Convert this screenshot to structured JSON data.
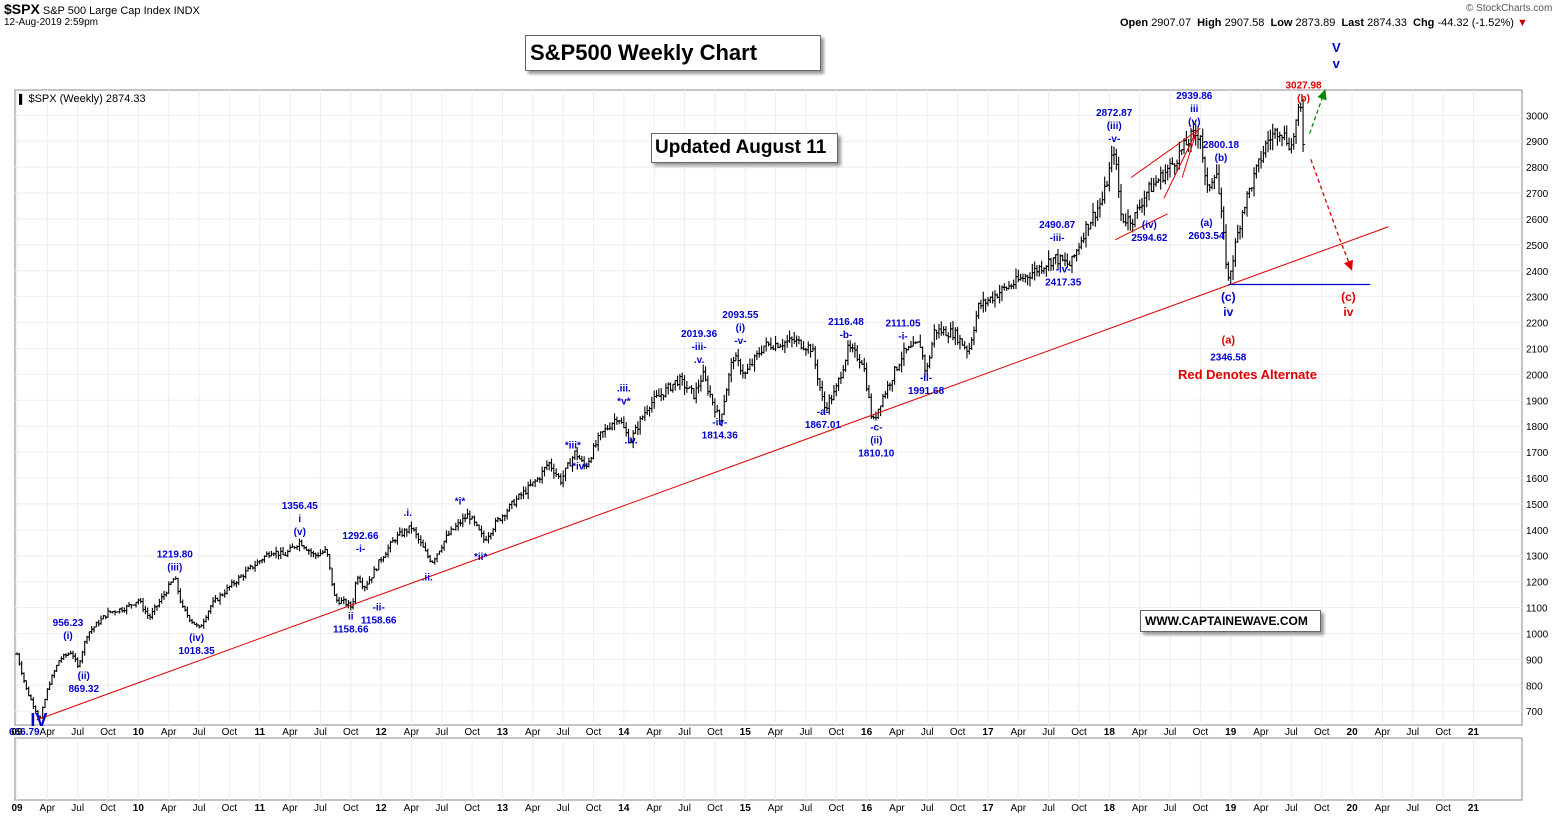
{
  "header": {
    "symbol": "$SPX",
    "description": "S&P 500 Large Cap Index",
    "exchange": "INDX",
    "timestamp": "12-Aug-2019 2:59pm",
    "open_label": "Open",
    "open": "2907.07",
    "high_label": "High",
    "high": "2907.58",
    "low_label": "Low",
    "low": "2873.89",
    "last_label": "Last",
    "last": "2874.33",
    "chg_label": "Chg",
    "chg": "-44.32 (-1.52%)",
    "brand": "© StockCharts.com"
  },
  "legend": {
    "text": "$SPX (Weekly) 2874.33"
  },
  "title_box": "S&P500 Weekly Chart",
  "updated_box": "Updated August 11",
  "website_box": "WWW.CAPTAINEWAVE.COM",
  "alternate_note": "Red Denotes Alternate",
  "colors": {
    "bars": "#000000",
    "wave_labels": "#0000cc",
    "alternate": "#dd0000",
    "trendline": "#dd0000",
    "support_line": "#0000cc",
    "bullish_arrow": "#008800"
  },
  "chart_data": {
    "type": "ohlc",
    "timeframe": "weekly",
    "ylim": [
      666,
      3090
    ],
    "yticks": [
      700,
      800,
      900,
      1000,
      1100,
      1200,
      1300,
      1400,
      1500,
      1600,
      1700,
      1800,
      1900,
      2000,
      2100,
      2200,
      2300,
      2400,
      2500,
      2600,
      2700,
      2800,
      2900,
      3000
    ],
    "x_range": [
      2009.0,
      2021.4
    ],
    "xticks": [
      {
        "t": 2009.0,
        "label": "09",
        "bold": true
      },
      {
        "t": 2009.25,
        "label": "Apr"
      },
      {
        "t": 2009.5,
        "label": "Jul"
      },
      {
        "t": 2009.75,
        "label": "Oct"
      },
      {
        "t": 2010.0,
        "label": "10",
        "bold": true
      },
      {
        "t": 2010.25,
        "label": "Apr"
      },
      {
        "t": 2010.5,
        "label": "Jul"
      },
      {
        "t": 2010.75,
        "label": "Oct"
      },
      {
        "t": 2011.0,
        "label": "11",
        "bold": true
      },
      {
        "t": 2011.25,
        "label": "Apr"
      },
      {
        "t": 2011.5,
        "label": "Jul"
      },
      {
        "t": 2011.75,
        "label": "Oct"
      },
      {
        "t": 2012.0,
        "label": "12",
        "bold": true
      },
      {
        "t": 2012.25,
        "label": "Apr"
      },
      {
        "t": 2012.5,
        "label": "Jul"
      },
      {
        "t": 2012.75,
        "label": "Oct"
      },
      {
        "t": 2013.0,
        "label": "13",
        "bold": true
      },
      {
        "t": 2013.25,
        "label": "Apr"
      },
      {
        "t": 2013.5,
        "label": "Jul"
      },
      {
        "t": 2013.75,
        "label": "Oct"
      },
      {
        "t": 2014.0,
        "label": "14",
        "bold": true
      },
      {
        "t": 2014.25,
        "label": "Apr"
      },
      {
        "t": 2014.5,
        "label": "Jul"
      },
      {
        "t": 2014.75,
        "label": "Oct"
      },
      {
        "t": 2015.0,
        "label": "15",
        "bold": true
      },
      {
        "t": 2015.25,
        "label": "Apr"
      },
      {
        "t": 2015.5,
        "label": "Jul"
      },
      {
        "t": 2015.75,
        "label": "Oct"
      },
      {
        "t": 2016.0,
        "label": "16",
        "bold": true
      },
      {
        "t": 2016.25,
        "label": "Apr"
      },
      {
        "t": 2016.5,
        "label": "Jul"
      },
      {
        "t": 2016.75,
        "label": "Oct"
      },
      {
        "t": 2017.0,
        "label": "17",
        "bold": true
      },
      {
        "t": 2017.25,
        "label": "Apr"
      },
      {
        "t": 2017.5,
        "label": "Jul"
      },
      {
        "t": 2017.75,
        "label": "Oct"
      },
      {
        "t": 2018.0,
        "label": "18",
        "bold": true
      },
      {
        "t": 2018.25,
        "label": "Apr"
      },
      {
        "t": 2018.5,
        "label": "Jul"
      },
      {
        "t": 2018.75,
        "label": "Oct"
      },
      {
        "t": 2019.0,
        "label": "19",
        "bold": true
      },
      {
        "t": 2019.25,
        "label": "Apr"
      },
      {
        "t": 2019.5,
        "label": "Jul"
      },
      {
        "t": 2019.75,
        "label": "Oct"
      },
      {
        "t": 2020.0,
        "label": "20",
        "bold": true
      },
      {
        "t": 2020.25,
        "label": "Apr"
      },
      {
        "t": 2020.5,
        "label": "Jul"
      },
      {
        "t": 2020.75,
        "label": "Oct"
      },
      {
        "t": 2021.0,
        "label": "21",
        "bold": true
      }
    ],
    "price_path": [
      [
        2009.0,
        920
      ],
      [
        2009.08,
        780
      ],
      [
        2009.19,
        667
      ],
      [
        2009.26,
        800
      ],
      [
        2009.35,
        900
      ],
      [
        2009.45,
        930
      ],
      [
        2009.5,
        870
      ],
      [
        2009.58,
        1000
      ],
      [
        2009.75,
        1080
      ],
      [
        2009.9,
        1100
      ],
      [
        2010.0,
        1130
      ],
      [
        2010.09,
        1060
      ],
      [
        2010.3,
        1217
      ],
      [
        2010.36,
        1100
      ],
      [
        2010.42,
        1060
      ],
      [
        2010.5,
        1018
      ],
      [
        2010.6,
        1110
      ],
      [
        2010.75,
        1180
      ],
      [
        2010.92,
        1250
      ],
      [
        2011.1,
        1320
      ],
      [
        2011.2,
        1300
      ],
      [
        2011.33,
        1356
      ],
      [
        2011.45,
        1300
      ],
      [
        2011.55,
        1320
      ],
      [
        2011.62,
        1130
      ],
      [
        2011.7,
        1120
      ],
      [
        2011.76,
        1100
      ],
      [
        2011.8,
        1230
      ],
      [
        2011.86,
        1180
      ],
      [
        2011.92,
        1220
      ],
      [
        2012.0,
        1290
      ],
      [
        2012.12,
        1370
      ],
      [
        2012.25,
        1410
      ],
      [
        2012.38,
        1300
      ],
      [
        2012.42,
        1278
      ],
      [
        2012.55,
        1380
      ],
      [
        2012.72,
        1460
      ],
      [
        2012.85,
        1360
      ],
      [
        2012.95,
        1430
      ],
      [
        2013.1,
        1510
      ],
      [
        2013.3,
        1600
      ],
      [
        2013.38,
        1660
      ],
      [
        2013.48,
        1590
      ],
      [
        2013.6,
        1700
      ],
      [
        2013.68,
        1640
      ],
      [
        2013.8,
        1760
      ],
      [
        2013.95,
        1840
      ],
      [
        2014.05,
        1740
      ],
      [
        2014.2,
        1880
      ],
      [
        2014.45,
        1980
      ],
      [
        2014.58,
        1920
      ],
      [
        2014.65,
        2000
      ],
      [
        2014.79,
        1820
      ],
      [
        2014.9,
        2070
      ],
      [
        2015.0,
        2000
      ],
      [
        2015.15,
        2110
      ],
      [
        2015.4,
        2130
      ],
      [
        2015.55,
        2100
      ],
      [
        2015.65,
        1870
      ],
      [
        2015.74,
        1930
      ],
      [
        2015.85,
        2100
      ],
      [
        2015.97,
        2050
      ],
      [
        2016.05,
        1810
      ],
      [
        2016.12,
        1900
      ],
      [
        2016.3,
        2080
      ],
      [
        2016.44,
        2120
      ],
      [
        2016.49,
        2000
      ],
      [
        2016.56,
        2170
      ],
      [
        2016.72,
        2160
      ],
      [
        2016.84,
        2090
      ],
      [
        2016.92,
        2260
      ],
      [
        2017.1,
        2320
      ],
      [
        2017.35,
        2390
      ],
      [
        2017.55,
        2450
      ],
      [
        2017.68,
        2420
      ],
      [
        2017.8,
        2560
      ],
      [
        2017.95,
        2680
      ],
      [
        2018.04,
        2872
      ],
      [
        2018.1,
        2600
      ],
      [
        2018.2,
        2600
      ],
      [
        2018.3,
        2700
      ],
      [
        2018.5,
        2800
      ],
      [
        2018.68,
        2920
      ],
      [
        2018.75,
        2930
      ],
      [
        2018.8,
        2700
      ],
      [
        2018.88,
        2800
      ],
      [
        2018.98,
        2360
      ],
      [
        2019.1,
        2640
      ],
      [
        2019.3,
        2900
      ],
      [
        2019.4,
        2950
      ],
      [
        2019.5,
        2880
      ],
      [
        2019.55,
        3000
      ],
      [
        2019.58,
        3020
      ],
      [
        2019.6,
        2870
      ]
    ],
    "trendline": [
      [
        2009.16,
        666
      ],
      [
        2020.3,
        2570
      ]
    ],
    "support_line": [
      [
        2018.98,
        2347
      ],
      [
        2020.15,
        2347
      ]
    ],
    "projection_bullish": [
      [
        2019.65,
        2930
      ],
      [
        2019.78,
        3100
      ]
    ],
    "projection_alternate": [
      [
        2019.66,
        2830
      ],
      [
        2019.9,
        2520
      ],
      [
        2020.0,
        2400
      ]
    ],
    "triangle_upper": [
      [
        2018.18,
        2760
      ],
      [
        2018.75,
        2950
      ]
    ],
    "triangle_lower": [
      [
        2018.05,
        2520
      ],
      [
        2018.48,
        2620
      ]
    ],
    "wedge": [
      [
        2018.45,
        2680
      ],
      [
        2018.72,
        2940
      ],
      [
        2018.6,
        2760
      ]
    ],
    "annotations": [
      {
        "t": 2009.18,
        "p": 620,
        "lines": [
          "IV"
        ],
        "size": 18,
        "color": "blue"
      },
      {
        "t": 2009.06,
        "p": 585,
        "lines": [
          "666.79"
        ],
        "size": 10,
        "color": "blue"
      },
      {
        "t": 2009.42,
        "p": 955,
        "lines": [
          "956.23",
          "(i)"
        ],
        "size": 10,
        "color": "blue"
      },
      {
        "t": 2009.55,
        "p": 870,
        "lines": [
          "(ii)",
          "869.32"
        ],
        "size": 10,
        "color": "blue",
        "below": true
      },
      {
        "t": 2010.3,
        "p": 1220,
        "lines": [
          "1219.80",
          "(iii)"
        ],
        "size": 10,
        "color": "blue"
      },
      {
        "t": 2010.48,
        "p": 1018,
        "lines": [
          "(iv)",
          "1018.35"
        ],
        "size": 10,
        "color": "blue",
        "below": true
      },
      {
        "t": 2011.33,
        "p": 1357,
        "lines": [
          "1356.45",
          "i",
          "(v)"
        ],
        "size": 10,
        "color": "blue"
      },
      {
        "t": 2011.83,
        "p": 1292,
        "lines": [
          "1292.66",
          "-i-"
        ],
        "size": 10,
        "color": "blue"
      },
      {
        "t": 2011.75,
        "p": 1100,
        "lines": [
          "ii",
          "1158.66"
        ],
        "size": 10,
        "color": "blue",
        "below": true
      },
      {
        "t": 2011.98,
        "p": 1135,
        "lines": [
          "-ii-",
          "1158.66"
        ],
        "size": 10,
        "color": "blue",
        "below": true
      },
      {
        "t": 2012.22,
        "p": 1430,
        "lines": [
          ".i."
        ],
        "size": 10,
        "color": "blue"
      },
      {
        "t": 2012.38,
        "p": 1250,
        "lines": [
          ".ii."
        ],
        "size": 10,
        "color": "blue",
        "below": true
      },
      {
        "t": 2012.65,
        "p": 1475,
        "lines": [
          "*i*"
        ],
        "size": 10,
        "color": "blue"
      },
      {
        "t": 2012.82,
        "p": 1330,
        "lines": [
          "*ii*"
        ],
        "size": 10,
        "color": "blue",
        "below": true
      },
      {
        "t": 2013.58,
        "p": 1690,
        "lines": [
          "*iii*"
        ],
        "size": 10,
        "color": "blue"
      },
      {
        "t": 2013.64,
        "p": 1680,
        "lines": [
          "*iv*"
        ],
        "size": 10,
        "color": "blue",
        "below": true
      },
      {
        "t": 2014.0,
        "p": 1860,
        "lines": [
          ".iii.",
          "*v*"
        ],
        "size": 10,
        "color": "blue"
      },
      {
        "t": 2014.06,
        "p": 1780,
        "lines": [
          ".iv."
        ],
        "size": 10,
        "color": "blue",
        "below": true
      },
      {
        "t": 2014.62,
        "p": 2020,
        "lines": [
          "2019.36",
          "-iii-",
          ".v."
        ],
        "size": 10,
        "color": "blue"
      },
      {
        "t": 2014.79,
        "p": 1850,
        "lines": [
          "-iv-",
          "1814.36"
        ],
        "size": 10,
        "color": "blue",
        "below": true
      },
      {
        "t": 2014.96,
        "p": 2094,
        "lines": [
          "2093.55",
          "(i)",
          "-v-"
        ],
        "size": 10,
        "color": "blue"
      },
      {
        "t": 2015.83,
        "p": 2117,
        "lines": [
          "2116.48",
          "-b-"
        ],
        "size": 10,
        "color": "blue"
      },
      {
        "t": 2015.64,
        "p": 1890,
        "lines": [
          "-a-",
          "1867.01"
        ],
        "size": 10,
        "color": "blue",
        "below": true
      },
      {
        "t": 2016.08,
        "p": 1830,
        "lines": [
          "-c-",
          "(ii)",
          "1810.10"
        ],
        "size": 10,
        "color": "blue",
        "below": true
      },
      {
        "t": 2016.3,
        "p": 2111,
        "lines": [
          "2111.05",
          "-i-"
        ],
        "size": 10,
        "color": "blue"
      },
      {
        "t": 2016.49,
        "p": 2020,
        "lines": [
          "-ii-",
          "1991.68"
        ],
        "size": 10,
        "color": "blue",
        "below": true
      },
      {
        "t": 2017.57,
        "p": 2491,
        "lines": [
          "2490.87",
          "-iii-"
        ],
        "size": 10,
        "color": "blue"
      },
      {
        "t": 2017.62,
        "p": 2440,
        "lines": [
          "-iv-",
          "2417.35"
        ],
        "size": 10,
        "color": "blue",
        "below": true
      },
      {
        "t": 2018.04,
        "p": 2873,
        "lines": [
          "2872.87",
          "(iii)",
          "-v-"
        ],
        "size": 10,
        "color": "blue"
      },
      {
        "t": 2018.33,
        "p": 2612,
        "lines": [
          "(iv)",
          "2594.62"
        ],
        "size": 10,
        "color": "blue",
        "below": true
      },
      {
        "t": 2018.7,
        "p": 2940,
        "lines": [
          "2939.86",
          "iii",
          "(v)"
        ],
        "size": 10,
        "color": "blue"
      },
      {
        "t": 2018.92,
        "p": 2800,
        "lines": [
          "2800.18",
          "(b)"
        ],
        "size": 10,
        "color": "blue"
      },
      {
        "t": 2018.8,
        "p": 2620,
        "lines": [
          "(a)",
          "2603.54"
        ],
        "size": 10,
        "color": "blue",
        "below": true
      },
      {
        "t": 2018.98,
        "p": 2330,
        "lines": [
          "(c)",
          "iv"
        ],
        "size": 12,
        "color": "blue",
        "below": true
      },
      {
        "t": 2018.98,
        "p": 2165,
        "lines": [
          "(a)"
        ],
        "size": 11,
        "color": "red",
        "below": true
      },
      {
        "t": 2018.98,
        "p": 2100,
        "lines": [
          "2346.58"
        ],
        "size": 10,
        "color": "blue",
        "below": true
      },
      {
        "t": 2019.6,
        "p": 3030,
        "lines": [
          "3027.98",
          "(b)"
        ],
        "size": 10,
        "color": "red"
      },
      {
        "t": 2019.87,
        "p": 3160,
        "lines": [
          "V",
          "v"
        ],
        "size": 13,
        "color": "blue"
      },
      {
        "t": 2019.97,
        "p": 2330,
        "lines": [
          "(c)",
          "iv"
        ],
        "size": 12,
        "color": "red",
        "below": true
      }
    ]
  }
}
